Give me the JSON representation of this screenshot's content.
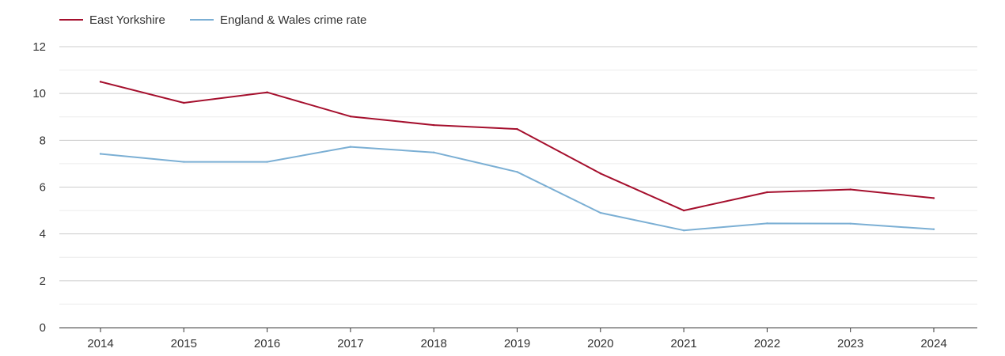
{
  "chart_data": {
    "type": "line",
    "title": "",
    "xlabel": "",
    "ylabel": "",
    "x": [
      "2014",
      "2015",
      "2016",
      "2017",
      "2018",
      "2019",
      "2020",
      "2021",
      "2022",
      "2023",
      "2024"
    ],
    "ylim": [
      0,
      12
    ],
    "yticks": [
      "0",
      "2",
      "4",
      "6",
      "8",
      "10",
      "12"
    ],
    "grid": true,
    "legend_position": "top-left",
    "series": [
      {
        "name": "East Yorkshire",
        "color": "#a50f2d",
        "values": [
          10.5,
          9.6,
          10.05,
          9.02,
          8.65,
          8.48,
          6.58,
          5.0,
          5.78,
          5.9,
          5.53
        ]
      },
      {
        "name": "England & Wales crime rate",
        "color": "#7bafd4",
        "values": [
          7.42,
          7.08,
          7.08,
          7.72,
          7.48,
          6.65,
          4.9,
          4.15,
          4.45,
          4.44,
          4.2
        ]
      }
    ]
  }
}
